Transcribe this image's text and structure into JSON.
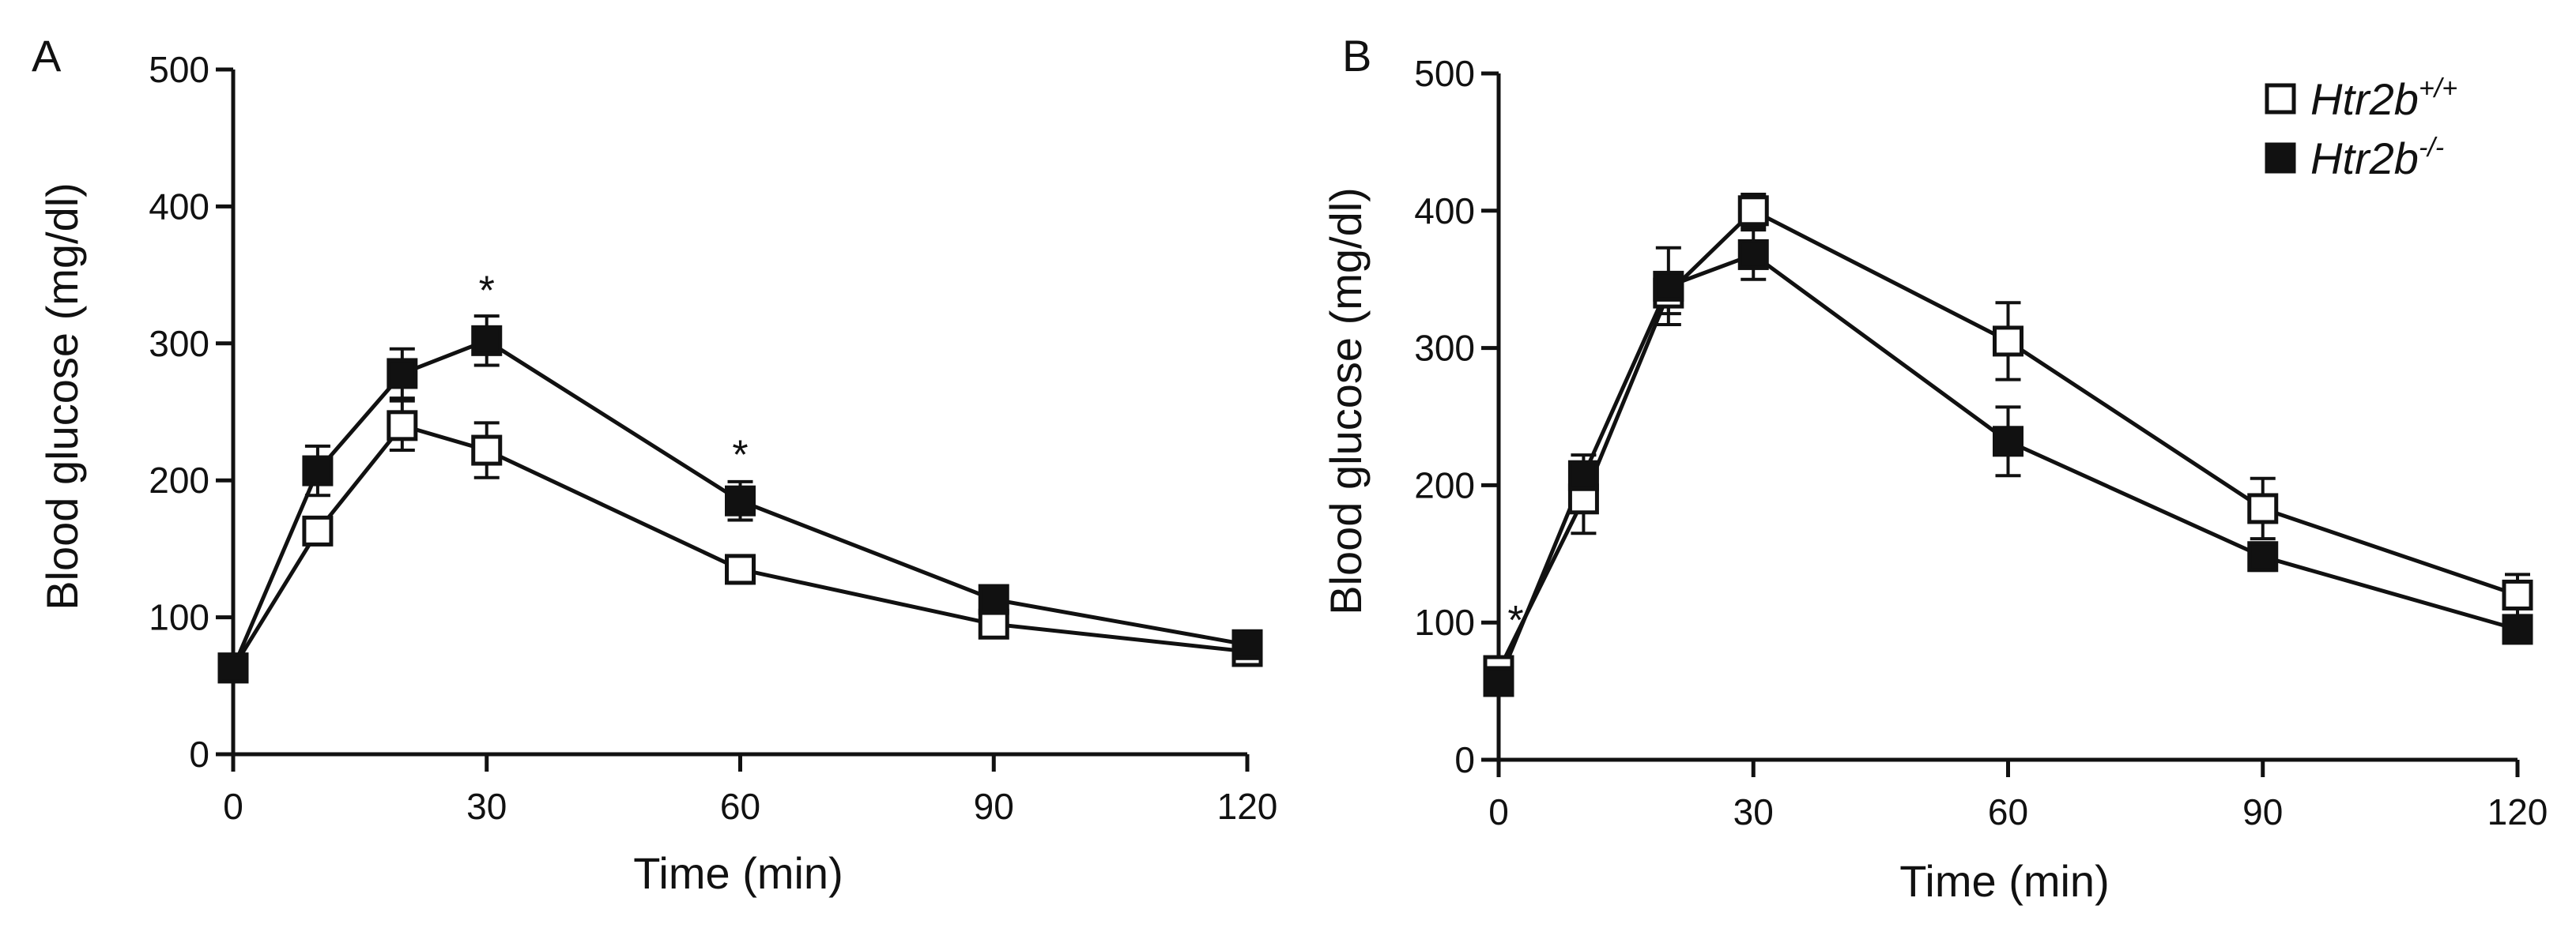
{
  "chart_data": [
    {
      "type": "line",
      "panel_label": "A",
      "xlabel": "Time (min)",
      "ylabel": "Blood glucose (mg/dl)",
      "xlim": [
        0,
        120
      ],
      "ylim": [
        0,
        500
      ],
      "xticks": [
        0,
        30,
        60,
        90,
        120
      ],
      "yticks": [
        0,
        100,
        200,
        300,
        400,
        500
      ],
      "x": [
        0,
        10,
        20,
        30,
        60,
        90,
        120
      ],
      "series": [
        {
          "name": "Htr2b+/+",
          "marker": "open-square",
          "values": [
            63,
            163,
            240,
            222,
            135,
            95,
            75
          ],
          "errors": [
            8,
            10,
            18,
            20,
            10,
            8,
            7
          ]
        },
        {
          "name": "Htr2b-/-",
          "marker": "filled-square",
          "values": [
            63,
            207,
            278,
            302,
            185,
            113,
            80
          ],
          "errors": [
            8,
            18,
            18,
            18,
            14,
            8,
            7
          ]
        }
      ],
      "annotations": [
        {
          "text": "*",
          "x": 30,
          "y": 340
        },
        {
          "text": "*",
          "x": 60,
          "y": 220
        }
      ]
    },
    {
      "type": "line",
      "panel_label": "B",
      "xlabel": "Time (min)",
      "ylabel": "Blood glucose (mg/dl)",
      "xlim": [
        0,
        120
      ],
      "ylim": [
        0,
        500
      ],
      "xticks": [
        0,
        30,
        60,
        90,
        120
      ],
      "yticks": [
        0,
        100,
        200,
        300,
        400,
        500
      ],
      "x": [
        0,
        10,
        20,
        30,
        60,
        90,
        120
      ],
      "series": [
        {
          "name": "Htr2b+/+",
          "marker": "open-square",
          "values": [
            65,
            190,
            340,
            400,
            305,
            183,
            120
          ],
          "errors": [
            8,
            25,
            15,
            12,
            28,
            22,
            15
          ]
        },
        {
          "name": "Htr2b-/-",
          "marker": "filled-square",
          "values": [
            57,
            207,
            345,
            368,
            232,
            148,
            95
          ],
          "errors": [
            8,
            15,
            28,
            18,
            25,
            10,
            8
          ]
        }
      ],
      "annotations": [
        {
          "text": "*",
          "x": 2,
          "y": 103
        }
      ],
      "legend": [
        {
          "base": "Htr2b",
          "sup": "+/+",
          "marker": "open-square"
        },
        {
          "base": "Htr2b",
          "sup": "-/-",
          "marker": "filled-square"
        }
      ]
    }
  ]
}
